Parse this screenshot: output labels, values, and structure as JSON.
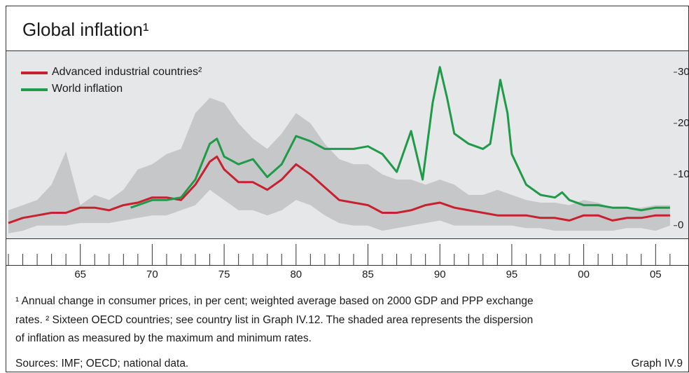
{
  "chart_data": {
    "type": "line",
    "title": "Global inflation¹",
    "xlim": [
      1960,
      2006.25
    ],
    "ylim": [
      -2.5,
      34.25
    ],
    "xticks": [
      {
        "value": 1965,
        "label": "65"
      },
      {
        "value": 1970,
        "label": "70"
      },
      {
        "value": 1975,
        "label": "75"
      },
      {
        "value": 1980,
        "label": "80"
      },
      {
        "value": 1985,
        "label": "85"
      },
      {
        "value": 1990,
        "label": "90"
      },
      {
        "value": 1995,
        "label": "95"
      },
      {
        "value": 2000,
        "label": "00"
      },
      {
        "value": 2005,
        "label": "05"
      }
    ],
    "xminor_ticks": [
      1960,
      1961,
      1962,
      1963,
      1964,
      1966,
      1967,
      1968,
      1969,
      1971,
      1972,
      1973,
      1974,
      1976,
      1977,
      1978,
      1979,
      1981,
      1982,
      1983,
      1984,
      1986,
      1987,
      1988,
      1989,
      1991,
      1992,
      1993,
      1994,
      1996,
      1997,
      1998,
      1999,
      2001,
      2002,
      2003,
      2004,
      2006
    ],
    "yticks": [
      0,
      10,
      20,
      30
    ],
    "band": {
      "color": "#c6c7c9",
      "x": [
        1960,
        1961,
        1962,
        1963,
        1964,
        1965,
        1966,
        1967,
        1968,
        1969,
        1970,
        1971,
        1972,
        1973,
        1974,
        1975,
        1976,
        1977,
        1978,
        1979,
        1980,
        1981,
        1982,
        1983,
        1984,
        1985,
        1986,
        1987,
        1988,
        1989,
        1990,
        1991,
        1992,
        1993,
        1994,
        1995,
        1996,
        1997,
        1998,
        1999,
        2000,
        2001,
        2002,
        2003,
        2004,
        2005,
        2006
      ],
      "max": [
        3,
        4,
        5,
        8,
        14.5,
        4,
        6,
        5,
        7,
        11,
        12,
        14,
        15,
        22,
        25,
        24,
        20,
        17,
        15,
        18,
        22,
        20,
        16,
        13,
        12,
        12,
        10,
        9,
        9,
        8,
        9,
        8,
        6,
        6,
        7,
        6,
        5,
        4.5,
        4.5,
        4,
        5,
        4.5,
        3.5,
        3.5,
        3.5,
        4,
        4
      ],
      "min": [
        -1.5,
        -1,
        0,
        0,
        0,
        0.5,
        0.5,
        0.5,
        1,
        1.5,
        2,
        2,
        3,
        4,
        7,
        5,
        3,
        3,
        2,
        3,
        5,
        4,
        2,
        0.5,
        0,
        0,
        -1,
        -0.5,
        0,
        0.5,
        1,
        0,
        0,
        0,
        0,
        0,
        -0.5,
        -0.5,
        -1,
        -1,
        -1,
        -1,
        -1,
        -0.5,
        -0.5,
        -1,
        0
      ]
    },
    "series": [
      {
        "name": "Advanced industrial countries²",
        "color": "#c8202f",
        "x": [
          1960,
          1961,
          1962,
          1963,
          1964,
          1965,
          1966,
          1967,
          1968,
          1969,
          1970,
          1971,
          1972,
          1973,
          1974,
          1974.5,
          1975,
          1976,
          1977,
          1978,
          1979,
          1980,
          1981,
          1982,
          1983,
          1984,
          1985,
          1986,
          1987,
          1988,
          1989,
          1990,
          1991,
          1992,
          1993,
          1994,
          1995,
          1996,
          1997,
          1998,
          1999,
          2000,
          2001,
          2002,
          2003,
          2004,
          2005,
          2006
        ],
        "values": [
          0.5,
          1.5,
          2,
          2.5,
          2.5,
          3.5,
          3.5,
          3,
          4,
          4.5,
          5.5,
          5.5,
          5,
          8,
          12.5,
          13.5,
          11,
          8.5,
          8.5,
          7,
          9,
          12,
          10,
          7.5,
          5,
          4.5,
          4,
          2.5,
          2.5,
          3,
          4,
          4.5,
          3.5,
          3,
          2.5,
          2,
          2,
          2,
          1.5,
          1.5,
          1,
          2,
          2,
          1,
          1.5,
          1.5,
          2,
          2
        ]
      },
      {
        "name": "World inflation",
        "color": "#1f9a48",
        "x": [
          1968.5,
          1969,
          1970,
          1971,
          1972,
          1973,
          1974,
          1974.5,
          1975,
          1976,
          1977,
          1978,
          1979,
          1980,
          1981,
          1982,
          1983,
          1984,
          1985,
          1986,
          1987,
          1988,
          1988.8,
          1989.5,
          1990,
          1990.5,
          1991,
          1992,
          1993,
          1993.5,
          1994.2,
          1994.7,
          1995,
          1996,
          1997,
          1998,
          1998.5,
          1999,
          2000,
          2001,
          2002,
          2003,
          2004,
          2005,
          2006
        ],
        "values": [
          3.5,
          4,
          5,
          5,
          5.5,
          9,
          16,
          17,
          13.5,
          12,
          13,
          9.5,
          12,
          17.5,
          16.5,
          15,
          15,
          15,
          15.5,
          14,
          10.5,
          18.5,
          9,
          24,
          31,
          25,
          18,
          16,
          15,
          16,
          28.5,
          22,
          14,
          8,
          6,
          5.5,
          6.5,
          5,
          4,
          4,
          3.5,
          3.5,
          3,
          3.5,
          3.5
        ]
      }
    ],
    "footnotes": [
      "¹ Annual change in consumer prices, in per cent; weighted average based on 2000 GDP and PPP exchange",
      "rates.    ² Sixteen OECD countries; see country list in Graph IV.12. The shaded area represents the dispersion",
      "of inflation as measured by the maximum and minimum rates."
    ],
    "sources": "Sources: IMF; OECD; national data.",
    "graph_id": "Graph IV.9"
  }
}
